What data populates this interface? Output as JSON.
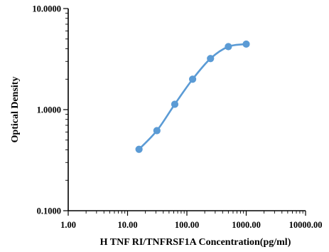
{
  "chart_data": {
    "type": "scatter",
    "xscale": "log",
    "yscale": "log",
    "xlabel": "H TNF RI/TNFRSF1A Concentration(pg/ml)",
    "ylabel": "Optical Density",
    "xlim": [
      1,
      10000
    ],
    "ylim": [
      0.1,
      10
    ],
    "xticks": [
      1,
      10,
      100,
      1000,
      10000
    ],
    "xtick_labels": [
      "1.00",
      "10.00",
      "100.00",
      "1000.00",
      "10000.00"
    ],
    "yticks": [
      0.1,
      1,
      10
    ],
    "ytick_labels": [
      "0.1000",
      "1.0000",
      "10.0000"
    ],
    "series": [
      {
        "color": "#5b9bd5",
        "x": [
          15.6,
          31.25,
          62.5,
          125,
          250,
          500,
          1000
        ],
        "y": [
          0.405,
          0.62,
          1.13,
          2.0,
          3.2,
          4.2,
          4.45
        ]
      }
    ],
    "grid": false,
    "legend": "none"
  }
}
